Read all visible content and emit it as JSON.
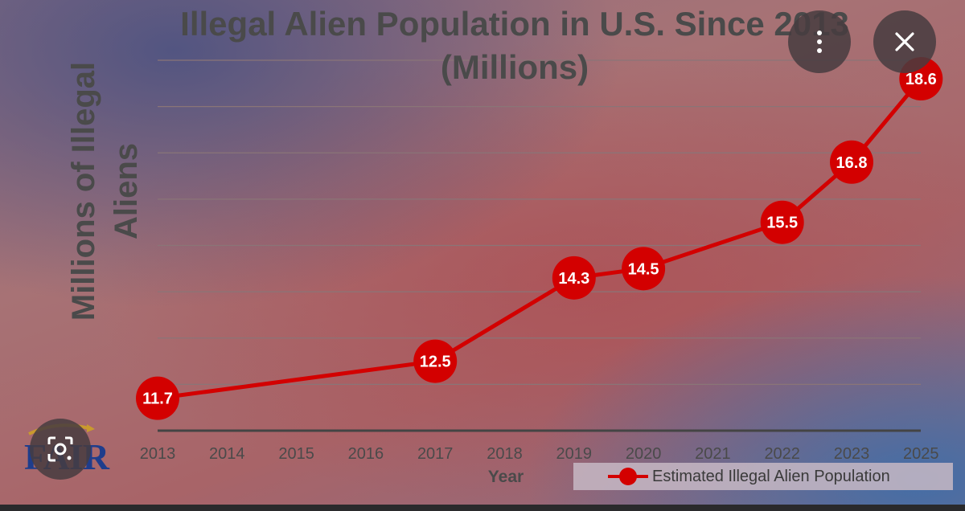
{
  "chart_data": {
    "type": "line",
    "title": [
      "Illegal Alien Population in U.S. Since 2013",
      "(Millions)"
    ],
    "ylabel": [
      "Millions of Illegal",
      "Aliens"
    ],
    "xlabel": "Year",
    "categories": [
      "2013",
      "2014",
      "2015",
      "2016",
      "2017",
      "2018",
      "2019",
      "2020",
      "2021",
      "2022",
      "2023",
      "2025"
    ],
    "series": [
      {
        "name": "Estimated Illegal Alien Population",
        "points": [
          {
            "category": "2013",
            "value": 11.7
          },
          {
            "category": "2017",
            "value": 12.5
          },
          {
            "category": "2019",
            "value": 14.3
          },
          {
            "category": "2020",
            "value": 14.5
          },
          {
            "category": "2022",
            "value": 15.5
          },
          {
            "category": "2023",
            "value": 16.8
          },
          {
            "category": "2025",
            "value": 18.6
          }
        ]
      }
    ],
    "ylim": [
      11,
      19
    ],
    "grid": true,
    "legend_position": "bottom-right",
    "colors": {
      "series": "#d30000",
      "grid": "#8a7577",
      "axis": "#444444"
    }
  },
  "overlay": {
    "more_icon": "more-vertical-icon",
    "close_icon": "close-icon",
    "lens_icon": "lens-search-icon"
  },
  "logo": {
    "text": "FAIR"
  }
}
